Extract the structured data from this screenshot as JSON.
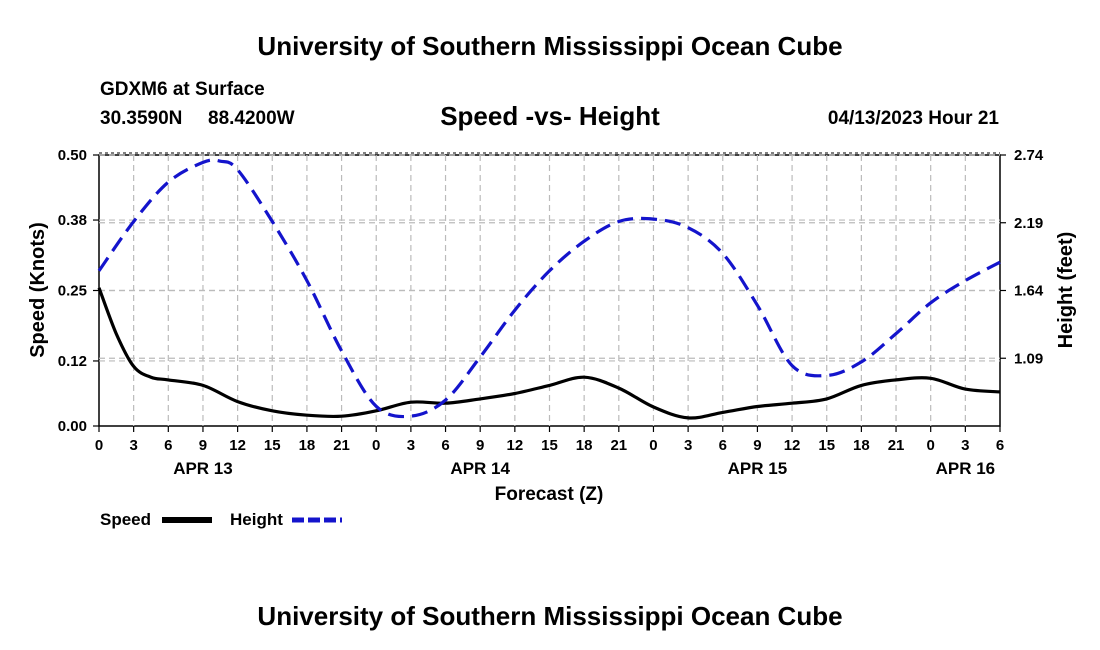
{
  "header": {
    "title": "University of Southern Mississippi Ocean Cube",
    "station": "GDXM6 at Surface",
    "lat": "30.3590N",
    "lon": "88.4200W",
    "subtitle": "Speed -vs- Height",
    "datetime": "04/13/2023 Hour 21"
  },
  "footer": {
    "title": "University of Southern Mississippi Ocean Cube"
  },
  "chart_data": {
    "type": "line",
    "title": "Speed -vs- Height",
    "xlabel": "Forecast (Z)",
    "ylabel": "Speed (Knots)",
    "y2label": "Height (feet)",
    "ylim": [
      0,
      0.5
    ],
    "y2lim": [
      0.54,
      2.74
    ],
    "xlim": [
      0,
      78
    ],
    "x_ticks": [
      0,
      3,
      6,
      9,
      12,
      15,
      18,
      21,
      24,
      27,
      30,
      33,
      36,
      39,
      42,
      45,
      48,
      51,
      54,
      57,
      60,
      63,
      66,
      69,
      72,
      75,
      78
    ],
    "x_tick_labels": [
      "0",
      "3",
      "6",
      "9",
      "12",
      "15",
      "18",
      "21",
      "0",
      "3",
      "6",
      "9",
      "12",
      "15",
      "18",
      "21",
      "0",
      "3",
      "6",
      "9",
      "12",
      "15",
      "18",
      "21",
      "0",
      "3",
      "6"
    ],
    "date_labels": [
      {
        "label": "APR 13",
        "x": 9
      },
      {
        "label": "APR 14",
        "x": 33
      },
      {
        "label": "APR 15",
        "x": 57
      },
      {
        "label": "APR 16",
        "x": 75
      }
    ],
    "y_ticks": [
      0.0,
      0.12,
      0.25,
      0.38,
      0.5
    ],
    "y_tick_labels": [
      "0.00",
      "0.12",
      "0.25",
      "0.38",
      "0.50"
    ],
    "y2_ticks": [
      1.09,
      1.64,
      2.19,
      2.74
    ],
    "y2_tick_labels": [
      "1.09",
      "1.64",
      "2.19",
      "2.74"
    ],
    "grid": true,
    "series": [
      {
        "name": "Speed",
        "axis": "left",
        "color": "#000000",
        "style": "solid",
        "x": [
          0,
          1.5,
          3,
          4.5,
          6,
          9,
          12,
          15,
          18,
          21,
          24,
          27,
          30,
          33,
          36,
          39,
          42,
          45,
          48,
          51,
          54,
          57,
          60,
          63,
          66,
          69,
          72,
          75,
          78
        ],
        "values": [
          0.255,
          0.17,
          0.11,
          0.09,
          0.085,
          0.075,
          0.045,
          0.028,
          0.02,
          0.018,
          0.028,
          0.044,
          0.042,
          0.05,
          0.06,
          0.075,
          0.09,
          0.07,
          0.035,
          0.015,
          0.025,
          0.036,
          0.042,
          0.05,
          0.075,
          0.085,
          0.088,
          0.068,
          0.063
        ]
      },
      {
        "name": "Height",
        "axis": "right",
        "color": "#1414cc",
        "style": "dashed",
        "x": [
          0,
          3,
          6,
          9,
          10.5,
          12,
          15,
          18,
          21,
          24,
          27,
          30,
          33,
          36,
          39,
          42,
          45,
          48,
          51,
          54,
          57,
          60,
          63,
          66,
          69,
          72,
          75,
          78
        ],
        "values": [
          1.8,
          2.2,
          2.52,
          2.68,
          2.69,
          2.62,
          2.2,
          1.72,
          1.15,
          0.7,
          0.62,
          0.75,
          1.1,
          1.48,
          1.8,
          2.04,
          2.2,
          2.22,
          2.15,
          1.94,
          1.52,
          1.03,
          0.95,
          1.06,
          1.29,
          1.54,
          1.72,
          1.87
        ]
      }
    ],
    "legend": [
      {
        "label": "Speed",
        "color": "#000000",
        "style": "solid"
      },
      {
        "label": "Height",
        "color": "#1414cc",
        "style": "dashed"
      }
    ],
    "legend_position": "bottom-left"
  }
}
